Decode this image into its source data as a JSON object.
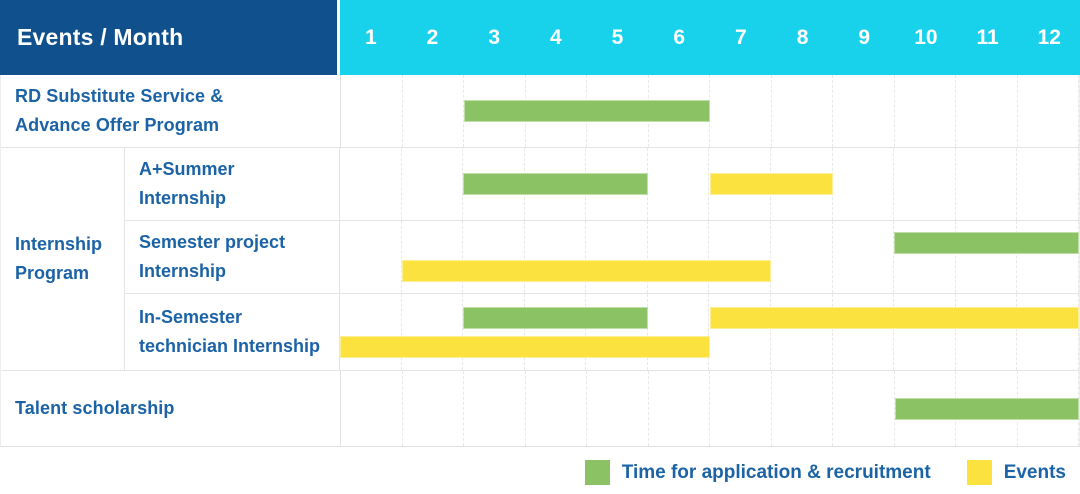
{
  "header": {
    "corner_label": "Events / Month",
    "months": [
      "1",
      "2",
      "3",
      "4",
      "5",
      "6",
      "7",
      "8",
      "9",
      "10",
      "11",
      "12"
    ]
  },
  "colors": {
    "corner_header_bg": "#10508C",
    "month_header_bg": "#18D2EC",
    "text_blue": "#1B63A6",
    "application_green": "#8BC364",
    "events_yellow": "#FCE23E",
    "gridline": "#E4E4E4"
  },
  "legend": {
    "items": [
      {
        "swatch": "green",
        "label": "Time for application & recruitment"
      },
      {
        "swatch": "yellow",
        "label": "Events"
      }
    ]
  },
  "group": {
    "label_lines": [
      "Internship",
      "Program"
    ]
  },
  "chart_data": {
    "type": "bar",
    "variant": "gantt-schedule",
    "title": "Events / Month",
    "x_axis": {
      "label": "Month",
      "ticks": [
        "1",
        "2",
        "3",
        "4",
        "5",
        "6",
        "7",
        "8",
        "9",
        "10",
        "11",
        "12"
      ],
      "range": [
        1,
        12
      ]
    },
    "grid": true,
    "legend_position": "bottom-right",
    "series_names": [
      "Time for application & recruitment",
      "Events"
    ],
    "rows": [
      {
        "event": "RD Substitute Service & Advance Offer Program",
        "label_lines": [
          "RD Substitute Service &",
          "Advance Offer Program"
        ],
        "group": "",
        "bars": [
          {
            "series": "Time for application & recruitment",
            "color": "green",
            "start_month": 3,
            "end_month": 6,
            "lane": "single"
          }
        ]
      },
      {
        "event": "A+Summer Internship",
        "label_lines": [
          "A+Summer",
          "Internship"
        ],
        "group": "Internship Program",
        "bars": [
          {
            "series": "Time for application & recruitment",
            "color": "green",
            "start_month": 3,
            "end_month": 5,
            "lane": "single"
          },
          {
            "series": "Events",
            "color": "yellow",
            "start_month": 7,
            "end_month": 8,
            "lane": "single"
          }
        ]
      },
      {
        "event": "Semester project Internship",
        "label_lines": [
          "Semester project",
          "Internship"
        ],
        "group": "Internship Program",
        "bars": [
          {
            "series": "Time for application & recruitment",
            "color": "green",
            "start_month": 10,
            "end_month": 12,
            "lane": "top"
          },
          {
            "series": "Events",
            "color": "yellow",
            "start_month": 2,
            "end_month": 7,
            "lane": "bottom"
          }
        ]
      },
      {
        "event": "In-Semester technician Internship",
        "label_lines": [
          "In-Semester",
          "technician Internship"
        ],
        "group": "Internship Program",
        "bars": [
          {
            "series": "Time for application & recruitment",
            "color": "green",
            "start_month": 3,
            "end_month": 5,
            "lane": "top"
          },
          {
            "series": "Events",
            "color": "yellow",
            "start_month": 7,
            "end_month": 12,
            "lane": "top"
          },
          {
            "series": "Events",
            "color": "yellow",
            "start_month": 1,
            "end_month": 6,
            "lane": "bottom"
          }
        ]
      },
      {
        "event": "Talent scholarship",
        "label_lines": [
          "Talent scholarship"
        ],
        "group": "",
        "bars": [
          {
            "series": "Time for application & recruitment",
            "color": "green",
            "start_month": 10,
            "end_month": 12,
            "lane": "single"
          }
        ]
      }
    ]
  }
}
